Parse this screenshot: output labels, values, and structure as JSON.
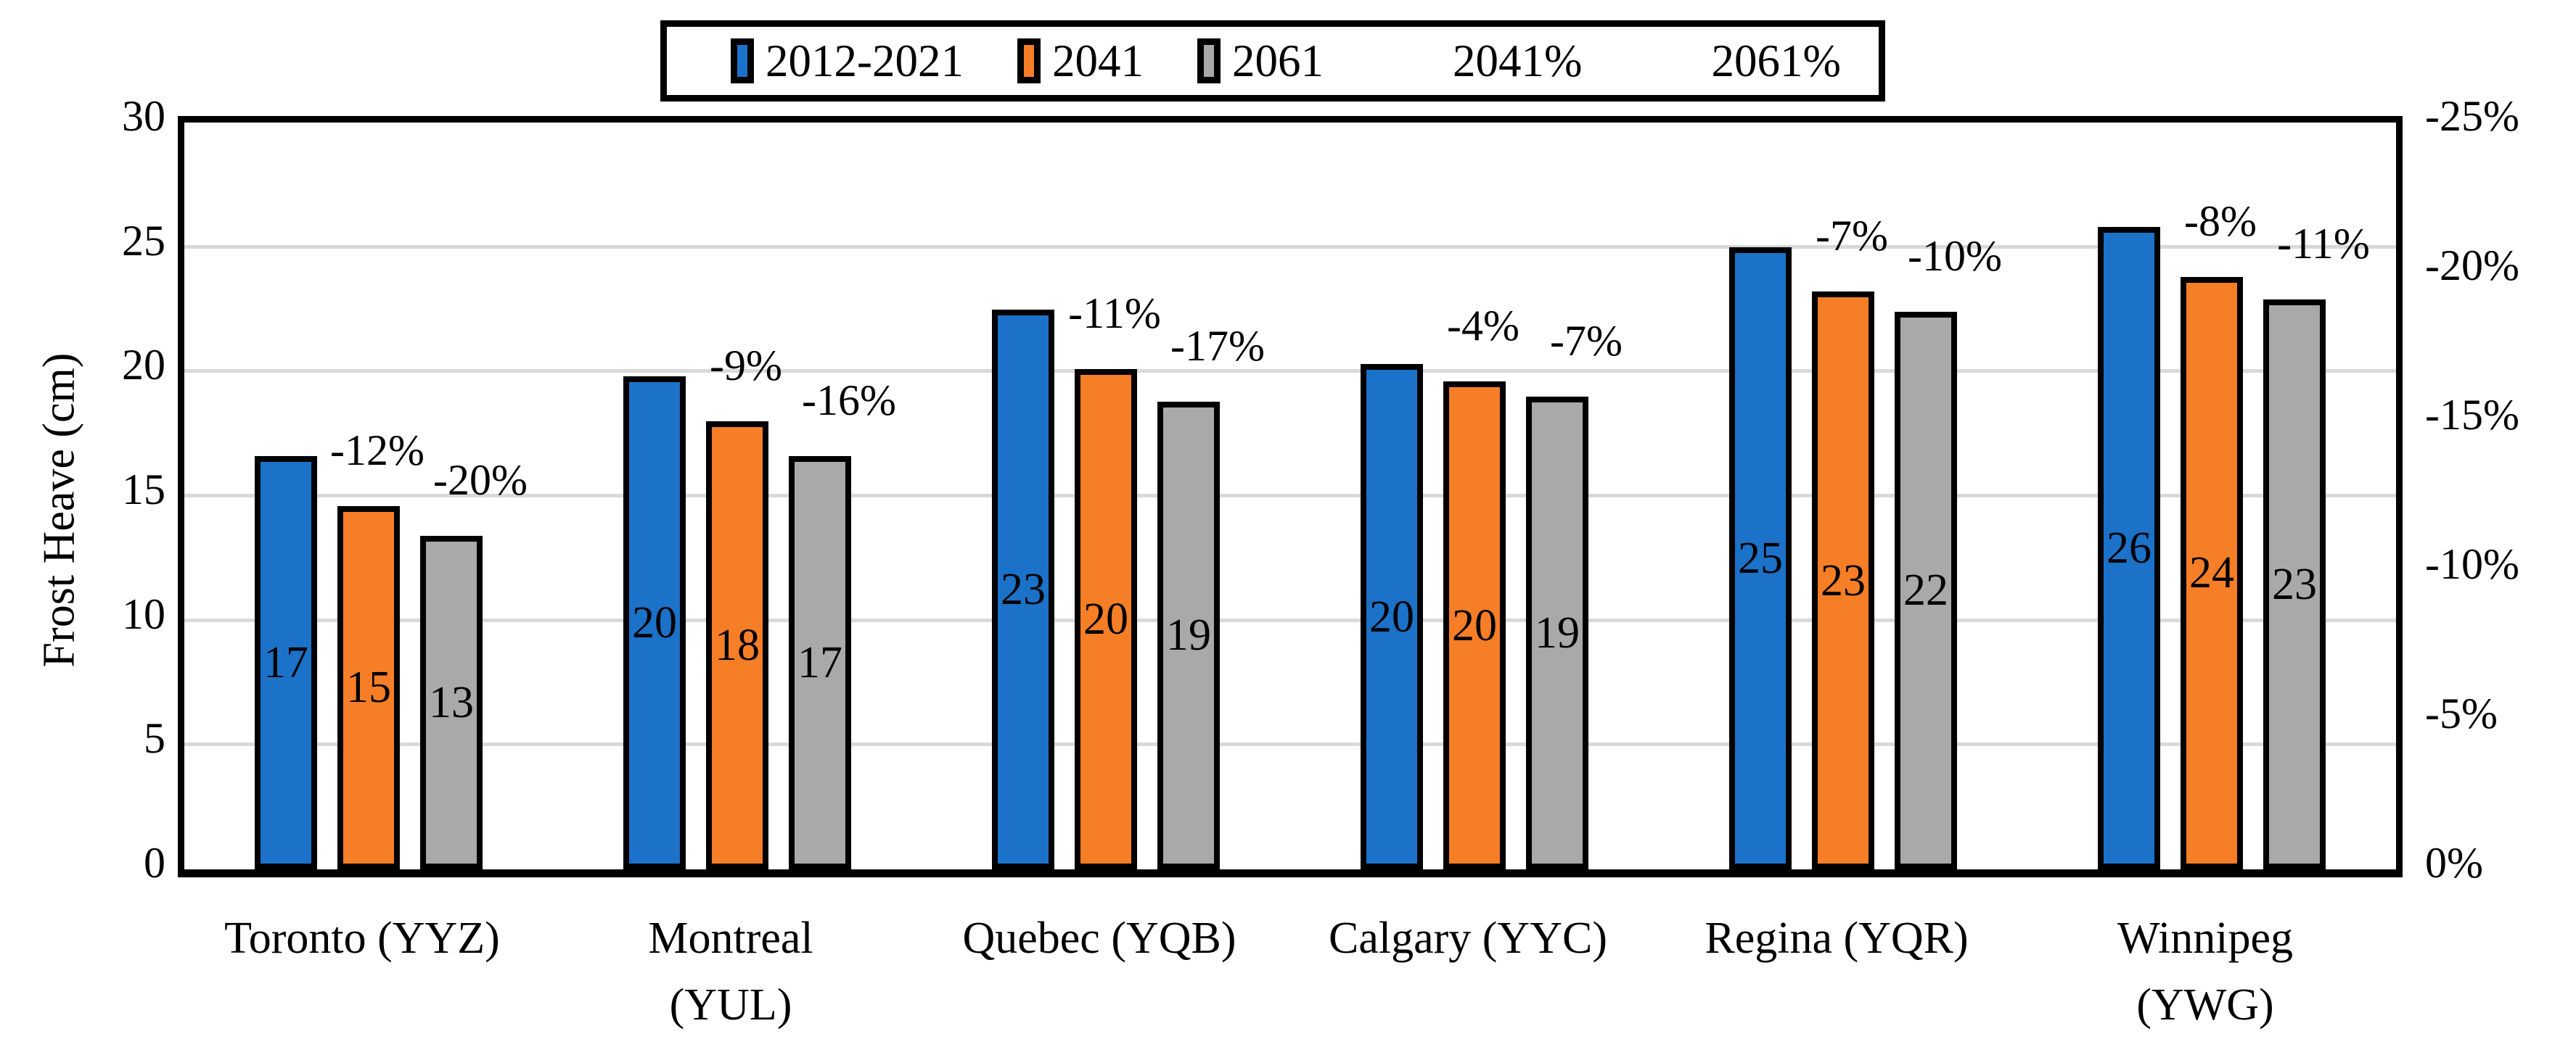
{
  "chart_data": {
    "type": "bar",
    "title": "",
    "ylabel": "Frost Heave (cm)",
    "categories": [
      "Toronto (YYZ)",
      "Montreal (YUL)",
      "Quebec (YQB)",
      "Calgary (YYC)",
      "Regina (YQR)",
      "Winnipeg (YWG)"
    ],
    "category_lines": [
      [
        "Toronto (YYZ)"
      ],
      [
        "Montreal",
        "(YUL)"
      ],
      [
        "Quebec (YQB)"
      ],
      [
        "Calgary (YYC)"
      ],
      [
        "Regina (YQR)"
      ],
      [
        "Winnipeg",
        "(YWG)"
      ]
    ],
    "ylim": [
      0,
      30
    ],
    "y2lim": [
      0,
      -25
    ],
    "yticks_left": [
      "0",
      "5",
      "10",
      "15",
      "20",
      "25",
      "30"
    ],
    "yticks_right": [
      "0%",
      "-5%",
      "-10%",
      "-15%",
      "-20%",
      "-25%"
    ],
    "grid": true,
    "legend_position": "top",
    "series": [
      {
        "name": "2012-2021",
        "role": "bar",
        "color": "#1B72C8",
        "values": [
          17,
          20,
          23,
          20,
          25,
          26
        ],
        "heights_cm": [
          16.6,
          19.8,
          22.5,
          20.3,
          25.0,
          25.8
        ]
      },
      {
        "name": "2041",
        "role": "bar",
        "color": "#F57E27",
        "values": [
          15,
          18,
          20,
          20,
          23,
          24
        ],
        "heights_cm": [
          14.6,
          18.0,
          20.1,
          19.6,
          23.2,
          23.8
        ]
      },
      {
        "name": "2061",
        "role": "bar",
        "color": "#A9A9A9",
        "values": [
          13,
          17,
          19,
          19,
          22,
          23
        ],
        "heights_cm": [
          13.4,
          16.6,
          18.8,
          19.0,
          22.4,
          22.9
        ]
      },
      {
        "name": "2041%",
        "role": "pct-label",
        "anchor_series": "2041",
        "values": [
          "-12%",
          "-9%",
          "-11%",
          "-4%",
          "-7%",
          "-8%"
        ]
      },
      {
        "name": "2061%",
        "role": "pct-label",
        "anchor_series": "2061",
        "values": [
          "-20%",
          "-16%",
          "-17%",
          "-7%",
          "-10%",
          "-11%"
        ]
      }
    ]
  },
  "legend": {
    "items": [
      {
        "label": "2012-2021",
        "swatch": "#1B72C8"
      },
      {
        "label": "2041",
        "swatch": "#F57E27"
      },
      {
        "label": "2061",
        "swatch": "#A9A9A9"
      },
      {
        "label": "2041%",
        "swatch": null
      },
      {
        "label": "2061%",
        "swatch": null
      }
    ]
  },
  "colors": {
    "background": "#FFFFFF",
    "grid": "#D9D9D9",
    "axis": "#000000",
    "bar_border": "#000000",
    "blue": "#1B72C8",
    "orange": "#F57E27",
    "gray": "#A9A9A9"
  }
}
